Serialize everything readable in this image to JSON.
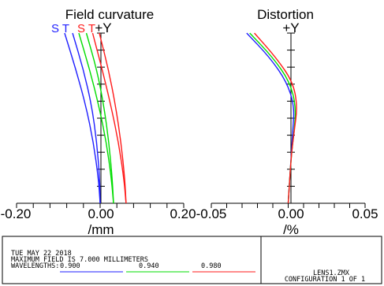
{
  "colors": {
    "wave1": "#1f1fff",
    "wave2": "#00dd00",
    "wave3": "#ff1a1a",
    "axis": "#000000"
  },
  "chart_data": [
    {
      "type": "line",
      "title": "Field curvature",
      "xlabel": "/mm",
      "ylabel": "+Y",
      "xlim": [
        -0.2,
        0.2
      ],
      "ylim": [
        0,
        7
      ],
      "x_ticks": [
        "-0.20",
        "0.00",
        "0.20"
      ],
      "legend": {
        "blue": "S T",
        "red": "S T"
      },
      "series": [
        {
          "color": "#1f1fff",
          "x": [
            -0.085,
            -0.058,
            -0.034,
            -0.016,
            -0.004,
            0.0
          ],
          "y": [
            7.0,
            5.5,
            4.0,
            2.5,
            1.0,
            0.0
          ]
        },
        {
          "color": "#1f1fff",
          "x": [
            -0.066,
            -0.04,
            -0.02,
            -0.008,
            -0.001,
            0.0
          ],
          "y": [
            7.0,
            5.5,
            4.0,
            2.5,
            1.0,
            0.0
          ]
        },
        {
          "color": "#00dd00",
          "x": [
            -0.051,
            -0.025,
            -0.003,
            0.015,
            0.027,
            0.032
          ],
          "y": [
            7.0,
            5.5,
            4.0,
            2.5,
            1.0,
            0.0
          ]
        },
        {
          "color": "#00dd00",
          "x": [
            -0.033,
            -0.008,
            0.009,
            0.021,
            0.029,
            0.032
          ],
          "y": [
            7.0,
            5.5,
            4.0,
            2.5,
            1.0,
            0.0
          ]
        },
        {
          "color": "#ff1a1a",
          "x": [
            -0.018,
            0.005,
            0.026,
            0.044,
            0.057,
            0.062
          ],
          "y": [
            7.0,
            5.5,
            4.0,
            2.5,
            1.0,
            0.0
          ]
        },
        {
          "color": "#ff1a1a",
          "x": [
            -0.002,
            0.02,
            0.037,
            0.05,
            0.059,
            0.062
          ],
          "y": [
            7.0,
            5.5,
            4.0,
            2.5,
            1.0,
            0.0
          ]
        }
      ]
    },
    {
      "type": "line",
      "title": "Distortion",
      "xlabel": "/%",
      "ylabel": "+Y",
      "xlim": [
        -0.05,
        0.05
      ],
      "ylim": [
        0,
        7
      ],
      "x_ticks": [
        "-0.05",
        "0.00",
        "0.05"
      ],
      "series": [
        {
          "color": "#1f1fff",
          "x": [
            -0.027,
            -0.012,
            -0.001,
            0.004,
            0.003,
            0.002,
            0.0
          ],
          "y": [
            7.0,
            6.0,
            5.0,
            4.0,
            3.0,
            2.0,
            0.0
          ]
        },
        {
          "color": "#00dd00",
          "x": [
            -0.025,
            -0.01,
            0.001,
            0.005,
            0.004,
            0.002,
            0.0
          ],
          "y": [
            7.0,
            6.0,
            5.0,
            4.0,
            3.0,
            2.0,
            0.0
          ]
        },
        {
          "color": "#ff1a1a",
          "x": [
            -0.022,
            -0.008,
            0.003,
            0.006,
            0.004,
            0.002,
            0.0
          ],
          "y": [
            7.0,
            6.0,
            5.0,
            4.0,
            3.0,
            2.0,
            0.0
          ]
        }
      ]
    }
  ],
  "footer": {
    "date": "TUE MAY 22 2018",
    "max_field": "MAXIMUM FIELD IS 7.000 MILLIMETERS",
    "wavelengths_label": "WAVELENGTHS:",
    "wavelengths": [
      "0.900",
      "0.940",
      "0.980"
    ],
    "file": "LENS1.ZMX",
    "configuration": "CONFIGURATION 1 OF 1"
  }
}
